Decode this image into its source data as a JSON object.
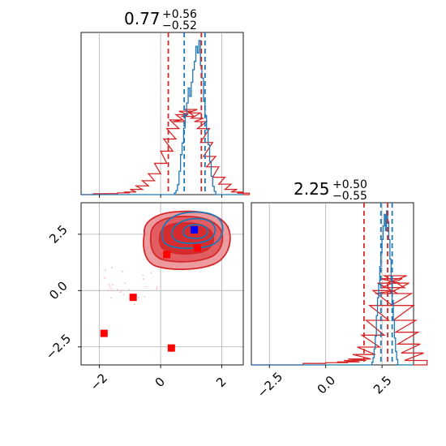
{
  "chart_data": {
    "type": "corner",
    "colors": {
      "blue": "#1f77b4",
      "red": "#d62728",
      "red_marker": "#ff0000",
      "blue_marker": "#0000ff",
      "grid": "#b0b0b0",
      "scatter": "#f4b6cc"
    },
    "panels": {
      "top_left": {
        "type": "histogram",
        "title": {
          "value": "0.77",
          "plus": "+0.56",
          "minus": "−0.52"
        },
        "xlim": [
          -2.6,
          2.7
        ],
        "xticks": [
          -2,
          0,
          2
        ],
        "grid": true,
        "series": [
          {
            "name": "red",
            "color": "#d62728",
            "bins": [
              {
                "x": -2.2,
                "y": 0.5
              },
              {
                "x": -1.8,
                "y": 0.6
              },
              {
                "x": -1.4,
                "y": 1.0
              },
              {
                "x": -1.2,
                "y": 1.5
              },
              {
                "x": -1.0,
                "y": 3
              },
              {
                "x": -0.8,
                "y": 5
              },
              {
                "x": -0.6,
                "y": 8
              },
              {
                "x": -0.4,
                "y": 12
              },
              {
                "x": -0.2,
                "y": 18
              },
              {
                "x": 0.0,
                "y": 25
              },
              {
                "x": 0.1,
                "y": 32
              },
              {
                "x": 0.2,
                "y": 38
              },
              {
                "x": 0.3,
                "y": 43
              },
              {
                "x": 0.4,
                "y": 42
              },
              {
                "x": 0.5,
                "y": 46
              },
              {
                "x": 0.6,
                "y": 48
              },
              {
                "x": 0.7,
                "y": 45
              },
              {
                "x": 0.8,
                "y": 49
              },
              {
                "x": 0.9,
                "y": 47
              },
              {
                "x": 1.0,
                "y": 44
              },
              {
                "x": 1.1,
                "y": 42
              },
              {
                "x": 1.2,
                "y": 38
              },
              {
                "x": 1.3,
                "y": 30
              },
              {
                "x": 1.4,
                "y": 22
              },
              {
                "x": 1.5,
                "y": 16
              },
              {
                "x": 1.7,
                "y": 10
              },
              {
                "x": 1.9,
                "y": 6
              },
              {
                "x": 2.1,
                "y": 3
              },
              {
                "x": 2.3,
                "y": 1.5
              },
              {
                "x": 2.5,
                "y": 0.8
              }
            ]
          },
          {
            "name": "blue",
            "color": "#1f77b4",
            "bins": [
              {
                "x": 0.45,
                "y": 2
              },
              {
                "x": 0.5,
                "y": 5
              },
              {
                "x": 0.55,
                "y": 12
              },
              {
                "x": 0.6,
                "y": 28
              },
              {
                "x": 0.65,
                "y": 48
              },
              {
                "x": 0.7,
                "y": 62
              },
              {
                "x": 0.75,
                "y": 80
              },
              {
                "x": 0.8,
                "y": 95
              },
              {
                "x": 0.85,
                "y": 110
              },
              {
                "x": 0.9,
                "y": 128
              },
              {
                "x": 0.95,
                "y": 118
              },
              {
                "x": 1.0,
                "y": 135
              },
              {
                "x": 1.05,
                "y": 150
              },
              {
                "x": 1.1,
                "y": 160
              },
              {
                "x": 1.15,
                "y": 178
              },
              {
                "x": 1.2,
                "y": 170
              },
              {
                "x": 1.25,
                "y": 185
              },
              {
                "x": 1.3,
                "y": 155
              },
              {
                "x": 1.35,
                "y": 140
              },
              {
                "x": 1.4,
                "y": 112
              },
              {
                "x": 1.45,
                "y": 95
              },
              {
                "x": 1.5,
                "y": 78
              },
              {
                "x": 1.55,
                "y": 60
              },
              {
                "x": 1.6,
                "y": 40
              },
              {
                "x": 1.65,
                "y": 22
              },
              {
                "x": 1.7,
                "y": 10
              },
              {
                "x": 1.75,
                "y": 4
              }
            ]
          }
        ],
        "vlines": [
          {
            "x": 0.25,
            "color": "#d62728"
          },
          {
            "x": 0.77,
            "color": "#1f77b4"
          },
          {
            "x": 1.33,
            "color": "#d62728"
          },
          {
            "x": 1.45,
            "color": "#1f77b4"
          }
        ]
      },
      "bottom_left": {
        "type": "contour",
        "xlim": [
          -2.6,
          2.7
        ],
        "ylim": [
          -3.3,
          3.9
        ],
        "xticks": [
          -2,
          0,
          2
        ],
        "yticks": [
          -2.5,
          0.0,
          2.5
        ],
        "ytick_labels": [
          "−2.5",
          "0.0",
          "2.5"
        ],
        "xtick_labels": [
          "−2",
          "0",
          "2"
        ],
        "grid": true,
        "red_points": [
          {
            "x": -1.85,
            "y": -1.9
          },
          {
            "x": -0.9,
            "y": -0.3
          },
          {
            "x": 0.35,
            "y": -2.55
          },
          {
            "x": 0.2,
            "y": 1.6
          },
          {
            "x": 1.2,
            "y": 1.9
          }
        ],
        "blue_points": [
          {
            "x": 1.1,
            "y": 2.7
          }
        ]
      },
      "bottom_right": {
        "type": "histogram",
        "title": {
          "value": "2.25",
          "plus": "+0.50",
          "minus": "−0.55"
        },
        "xlim": [
          -3.3,
          3.9
        ],
        "xticks": [
          -2.5,
          0.0,
          2.5
        ],
        "xtick_labels": [
          "−2.5",
          "0.0",
          "2.5"
        ],
        "grid": true,
        "series": [
          {
            "name": "red",
            "color": "#d62728",
            "bins": [
              {
                "x": -1.0,
                "y": 1
              },
              {
                "x": 0.0,
                "y": 1.5
              },
              {
                "x": 0.5,
                "y": 2
              },
              {
                "x": 0.8,
                "y": 3
              },
              {
                "x": 1.0,
                "y": 4
              },
              {
                "x": 1.2,
                "y": 7
              },
              {
                "x": 1.4,
                "y": 12
              },
              {
                "x": 1.6,
                "y": 20
              },
              {
                "x": 1.8,
                "y": 30
              },
              {
                "x": 1.95,
                "y": 40
              },
              {
                "x": 2.1,
                "y": 50
              },
              {
                "x": 2.2,
                "y": 48
              },
              {
                "x": 2.3,
                "y": 55
              },
              {
                "x": 2.4,
                "y": 58
              },
              {
                "x": 2.5,
                "y": 52
              },
              {
                "x": 2.6,
                "y": 60
              },
              {
                "x": 2.7,
                "y": 55
              },
              {
                "x": 2.8,
                "y": 48
              },
              {
                "x": 2.9,
                "y": 40
              },
              {
                "x": 3.0,
                "y": 30
              },
              {
                "x": 3.1,
                "y": 22
              },
              {
                "x": 3.2,
                "y": 14
              },
              {
                "x": 3.35,
                "y": 8
              },
              {
                "x": 3.5,
                "y": 3
              }
            ]
          },
          {
            "name": "blue",
            "color": "#1f77b4",
            "bins": [
              {
                "x": 2.05,
                "y": 3
              },
              {
                "x": 2.1,
                "y": 8
              },
              {
                "x": 2.15,
                "y": 18
              },
              {
                "x": 2.2,
                "y": 32
              },
              {
                "x": 2.25,
                "y": 55
              },
              {
                "x": 2.3,
                "y": 75
              },
              {
                "x": 2.35,
                "y": 90
              },
              {
                "x": 2.4,
                "y": 110
              },
              {
                "x": 2.45,
                "y": 125
              },
              {
                "x": 2.5,
                "y": 140
              },
              {
                "x": 2.55,
                "y": 155
              },
              {
                "x": 2.6,
                "y": 168
              },
              {
                "x": 2.65,
                "y": 150
              },
              {
                "x": 2.7,
                "y": 172
              },
              {
                "x": 2.75,
                "y": 160
              },
              {
                "x": 2.8,
                "y": 140
              },
              {
                "x": 2.85,
                "y": 118
              },
              {
                "x": 2.9,
                "y": 95
              },
              {
                "x": 2.95,
                "y": 72
              },
              {
                "x": 3.0,
                "y": 50
              },
              {
                "x": 3.05,
                "y": 30
              },
              {
                "x": 3.1,
                "y": 15
              },
              {
                "x": 3.15,
                "y": 6
              }
            ]
          }
        ],
        "vlines": [
          {
            "x": 1.7,
            "color": "#d62728"
          },
          {
            "x": 2.45,
            "color": "#1f77b4"
          },
          {
            "x": 2.75,
            "color": "#d62728"
          },
          {
            "x": 2.95,
            "color": "#1f77b4"
          }
        ]
      }
    }
  }
}
